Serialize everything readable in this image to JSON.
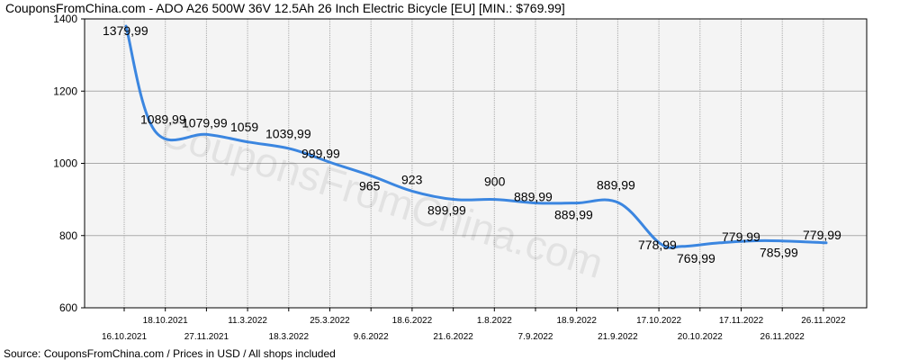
{
  "title": "CouponsFromChina.com - ADO A26 500W 36V 12.5Ah 26 Inch Electric Bicycle [EU] [MIN.: $769.99]",
  "footer": "Source: CouponsFromChina.com / Prices in USD / All shops included",
  "watermark": "CouponsFromChina.com",
  "colors": {
    "line": "#3b86e0",
    "plot_bg": "#f4f4f4",
    "grid": "#a9a9a9",
    "axis": "#000000"
  },
  "chart_data": {
    "type": "line",
    "title": "CouponsFromChina.com - ADO A26 500W 36V 12.5Ah 26 Inch Electric Bicycle [EU] [MIN.: $769.99]",
    "xlabel": "",
    "ylabel": "",
    "ylim": [
      600,
      1400
    ],
    "yticks": [
      600,
      800,
      1000,
      1200,
      1400
    ],
    "grid": true,
    "x_ticks_top": [
      "18.10.2021",
      "11.3.2022",
      "25.3.2022",
      "18.6.2022",
      "1.8.2022",
      "18.9.2022",
      "17.10.2022",
      "17.11.2022",
      "26.11.2022"
    ],
    "x_ticks_bottom": [
      "16.10.2021",
      "27.11.2021",
      "18.3.2022",
      "9.6.2022",
      "21.6.2022",
      "7.9.2022",
      "21.9.2022",
      "20.10.2022",
      "26.11.2022"
    ],
    "series": [
      {
        "values": [
          1379.99,
          1089.99,
          1079.99,
          1059,
          1039.99,
          999.99,
          965,
          923,
          899.99,
          900,
          889.99,
          889.99,
          889.99,
          778.99,
          769.99,
          779.99,
          785.99,
          779.99
        ],
        "labels": [
          "1379,99",
          "1089,99",
          "1079,99",
          "1059",
          "1039,99",
          "999,99",
          "965",
          "923",
          "899,99",
          "900",
          "889,99",
          "889,99",
          "889,99",
          "778,99",
          "769,99",
          "779,99",
          "785,99",
          "779,99"
        ]
      }
    ]
  }
}
